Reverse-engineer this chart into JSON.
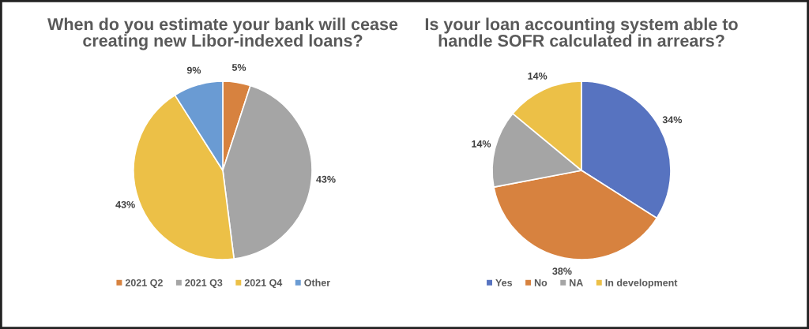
{
  "chart_data": [
    {
      "type": "pie",
      "title": "When do you estimate your bank will cease\ncreating new Libor-indexed loans?",
      "categories": [
        "2021 Q2",
        "2021 Q3",
        "2021 Q4",
        "Other"
      ],
      "values": [
        5,
        43,
        43,
        9
      ],
      "colors": [
        "#d7823f",
        "#a5a5a5",
        "#ecc047",
        "#6a9bd3"
      ],
      "value_labels": [
        "5%",
        "43%",
        "43%",
        "9%"
      ],
      "legend": "bottom"
    },
    {
      "type": "pie",
      "title": "Is your loan accounting system able to\nhandle SOFR calculated in arrears?",
      "categories": [
        "Yes",
        "No",
        "NA",
        "In development"
      ],
      "values": [
        34,
        38,
        14,
        14
      ],
      "colors": [
        "#5773c0",
        "#d7823f",
        "#a5a5a5",
        "#ecc047"
      ],
      "value_labels": [
        "34%",
        "38%",
        "14%",
        "14%"
      ],
      "legend": "bottom"
    }
  ]
}
